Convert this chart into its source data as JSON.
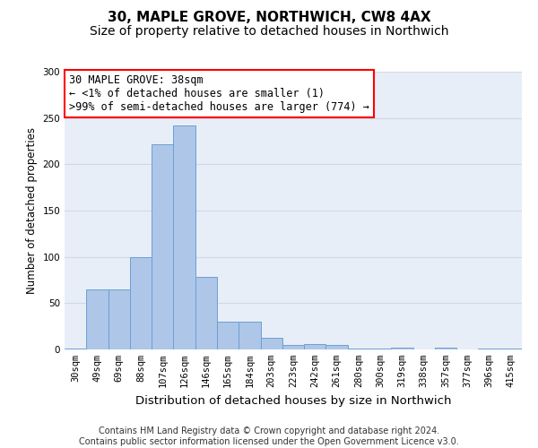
{
  "title": "30, MAPLE GROVE, NORTHWICH, CW8 4AX",
  "subtitle": "Size of property relative to detached houses in Northwich",
  "xlabel": "Distribution of detached houses by size in Northwich",
  "ylabel": "Number of detached properties",
  "categories": [
    "30sqm",
    "49sqm",
    "69sqm",
    "88sqm",
    "107sqm",
    "126sqm",
    "146sqm",
    "165sqm",
    "184sqm",
    "203sqm",
    "223sqm",
    "242sqm",
    "261sqm",
    "280sqm",
    "300sqm",
    "319sqm",
    "338sqm",
    "357sqm",
    "377sqm",
    "396sqm",
    "415sqm"
  ],
  "values": [
    1,
    65,
    65,
    100,
    222,
    242,
    78,
    30,
    30,
    13,
    5,
    6,
    5,
    1,
    1,
    2,
    0,
    2,
    0,
    1,
    1
  ],
  "bar_color": "#aec6e8",
  "bar_edge_color": "#6ca0d4",
  "annotation_text_line1": "30 MAPLE GROVE: 38sqm",
  "annotation_text_line2": "← <1% of detached houses are smaller (1)",
  "annotation_text_line3": ">99% of semi-detached houses are larger (774) →",
  "annotation_box_color": "white",
  "annotation_box_edge_color": "red",
  "ylim": [
    0,
    300
  ],
  "yticks": [
    0,
    50,
    100,
    150,
    200,
    250,
    300
  ],
  "grid_color": "#d0d8e8",
  "background_color": "#e8eef8",
  "footer_line1": "Contains HM Land Registry data © Crown copyright and database right 2024.",
  "footer_line2": "Contains public sector information licensed under the Open Government Licence v3.0.",
  "title_fontsize": 11,
  "subtitle_fontsize": 10,
  "tick_fontsize": 7.5,
  "xlabel_fontsize": 9.5,
  "ylabel_fontsize": 8.5,
  "annotation_fontsize": 8.5,
  "footer_fontsize": 7
}
